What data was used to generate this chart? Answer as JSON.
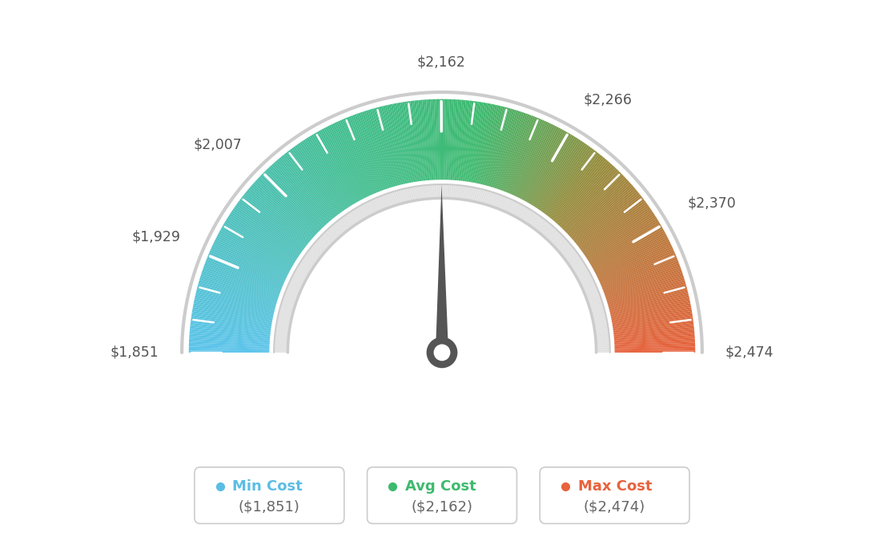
{
  "min_val": 1851,
  "max_val": 2474,
  "avg_val": 2162,
  "tick_labels": [
    {
      "value": 1851,
      "label": "$1,851",
      "major": true
    },
    {
      "value": 1929,
      "label": "$1,929",
      "major": true
    },
    {
      "value": 2007,
      "label": "$2,007",
      "major": true
    },
    {
      "value": 2162,
      "label": "$2,162",
      "major": true
    },
    {
      "value": 2266,
      "label": "$2,266",
      "major": true
    },
    {
      "value": 2370,
      "label": "$2,370",
      "major": true
    },
    {
      "value": 2474,
      "label": "$2,474",
      "major": true
    }
  ],
  "all_ticks": [
    1851,
    1877,
    1903,
    1929,
    1955,
    1981,
    2007,
    2033,
    2059,
    2085,
    2111,
    2136,
    2162,
    2188,
    2214,
    2240,
    2266,
    2292,
    2318,
    2344,
    2370,
    2396,
    2422,
    2448,
    2474
  ],
  "legend": [
    {
      "label": "Min Cost",
      "value": "($1,851)",
      "color": "#5bbde4"
    },
    {
      "label": "Avg Cost",
      "value": "($2,162)",
      "color": "#3dba6f"
    },
    {
      "label": "Max Cost",
      "value": "($2,474)",
      "color": "#e8623d"
    }
  ],
  "needle_value": 2162,
  "background_color": "#ffffff"
}
